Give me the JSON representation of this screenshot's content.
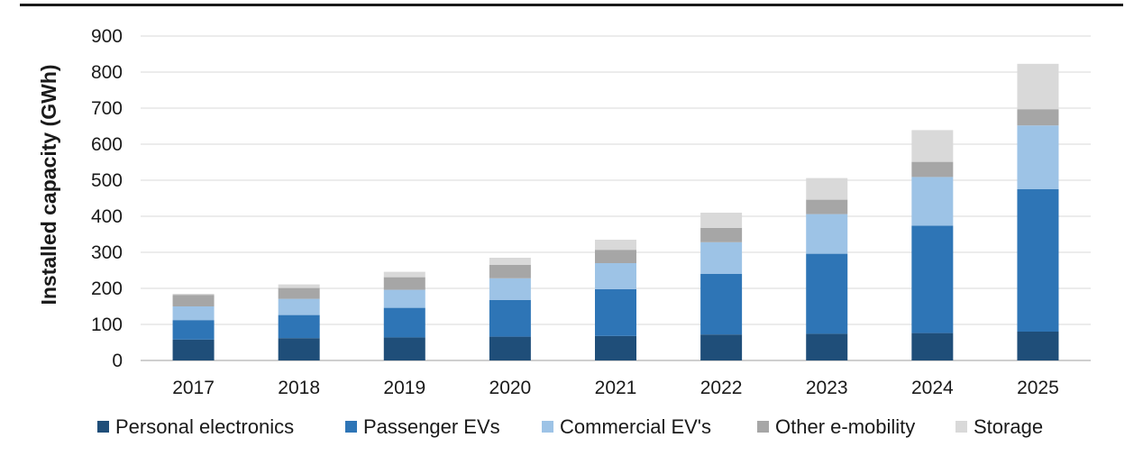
{
  "chart_data": {
    "type": "bar",
    "stacked": true,
    "title": "",
    "xlabel": "",
    "ylabel": "Installed capacity (GWh)",
    "ylim": [
      0,
      900
    ],
    "yticks": [
      0,
      100,
      200,
      300,
      400,
      500,
      600,
      700,
      800,
      900
    ],
    "grid": true,
    "legend_position": "bottom",
    "categories": [
      "2017",
      "2018",
      "2019",
      "2020",
      "2021",
      "2022",
      "2023",
      "2024",
      "2025"
    ],
    "series": [
      {
        "name": "Personal electronics",
        "color": "#1f4e79",
        "values": [
          58,
          62,
          64,
          66,
          68,
          72,
          74,
          76,
          80
        ]
      },
      {
        "name": "Passenger EVs",
        "color": "#2e75b6",
        "values": [
          54,
          64,
          82,
          102,
          130,
          168,
          222,
          298,
          395
        ]
      },
      {
        "name": "Commercial EV's",
        "color": "#9dc3e6",
        "values": [
          38,
          45,
          50,
          60,
          72,
          88,
          110,
          135,
          177
        ]
      },
      {
        "name": "Other e-mobility",
        "color": "#a6a6a6",
        "values": [
          32,
          30,
          35,
          37,
          37,
          40,
          40,
          42,
          45
        ]
      },
      {
        "name": "Storage",
        "color": "#d9d9d9",
        "values": [
          3,
          10,
          15,
          20,
          28,
          42,
          60,
          88,
          126
        ]
      }
    ]
  }
}
